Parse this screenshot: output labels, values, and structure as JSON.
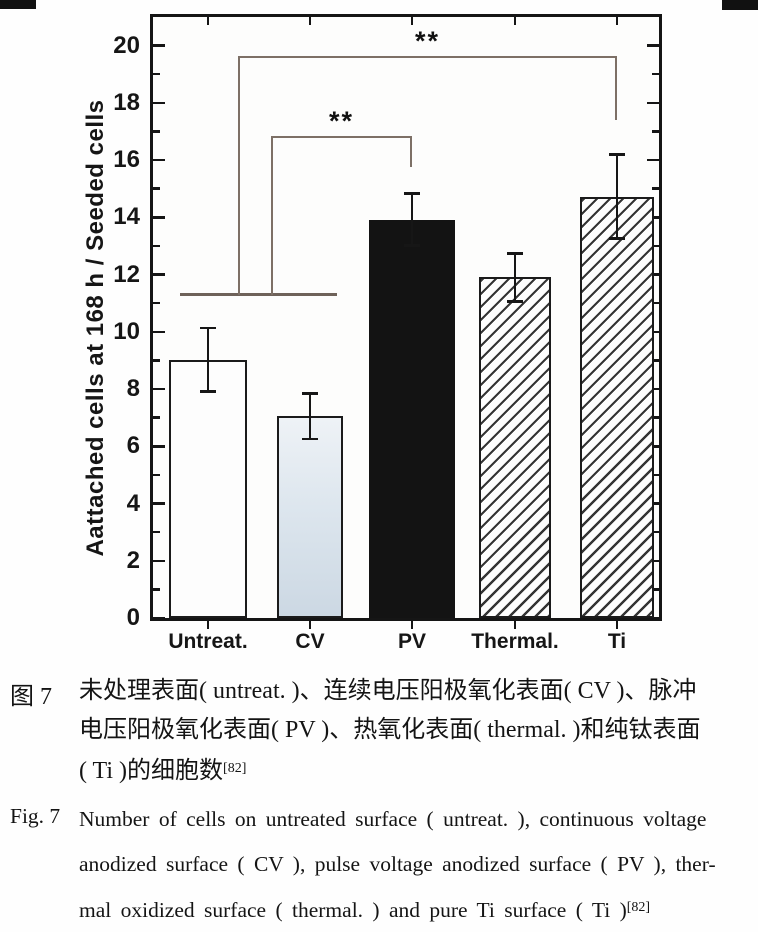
{
  "chart_data": {
    "type": "bar",
    "title": "",
    "ylabel": "Aattached cells at 168 h / Seeded cells",
    "xlabel": "",
    "ylim": [
      0,
      21
    ],
    "ytick_step": 2,
    "ytick_labels": [
      "0",
      "2",
      "4",
      "6",
      "8",
      "10",
      "12",
      "14",
      "16",
      "18",
      "20"
    ],
    "grid": false,
    "legend": "none",
    "categories": [
      "Untreat.",
      "CV",
      "PV",
      "Thermal.",
      "Ti"
    ],
    "values": [
      9.0,
      7.05,
      13.9,
      11.9,
      14.7
    ],
    "error_plus": [
      1.15,
      0.8,
      0.95,
      0.85,
      1.5
    ],
    "error_minus": [
      1.1,
      0.8,
      0.9,
      0.85,
      1.45
    ],
    "bar_styles": [
      "white",
      "lightblue",
      "black",
      "hatch",
      "hatch"
    ],
    "significance": {
      "group_line_level": 11.3,
      "group_members": [
        "Untreat.",
        "CV"
      ],
      "brackets": [
        {
          "label": "**",
          "to_category": "PV",
          "level": 16.85,
          "drop_to_level": 15.75
        },
        {
          "label": "**",
          "to_category": "Ti",
          "level": 19.65,
          "drop_to_level": 17.4
        }
      ]
    }
  },
  "colors": {
    "ink": "#161616",
    "bar_black": "#131313",
    "bar_white": "#fdfdfd",
    "bar_lightblue_top": "#eef2f6",
    "bar_lightblue_bottom": "#ccd8e3",
    "bracket_line": "#7d7066",
    "group_line": "#6e6259"
  },
  "caption_zh": {
    "label": "图 7",
    "lines": [
      "未处理表面( untreat. )、连续电压阳极氧化表面( CV )、脉冲",
      "电压阳极氧化表面( PV )、热氧化表面( thermal. )和纯钛表面",
      "( Ti )的细胞数"
    ],
    "ref": "[82]"
  },
  "caption_en": {
    "label": "Fig. 7",
    "lines": [
      "Number of cells on untreated surface ( untreat. ), continuous voltage",
      "anodized surface ( CV ), pulse voltage anodized surface ( PV ), ther-",
      "mal oxidized surface ( thermal. ) and pure Ti surface ( Ti )"
    ],
    "ref": "[82]"
  }
}
